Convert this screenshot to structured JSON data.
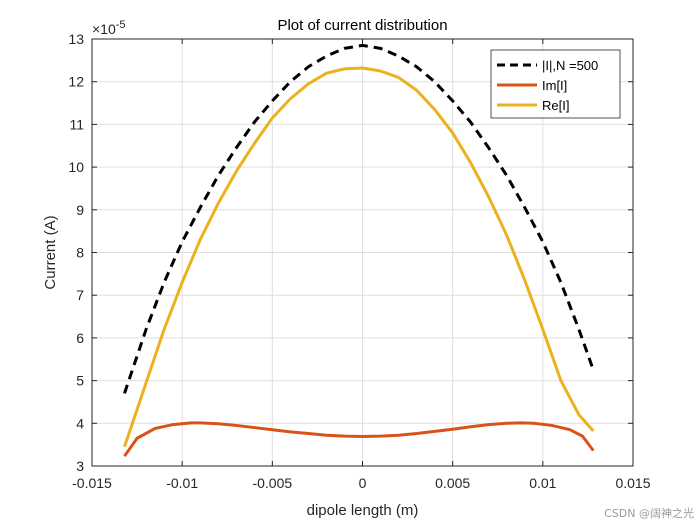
{
  "chart_data": {
    "type": "line",
    "title": "Plot of current distribution",
    "xlabel": "dipole length (m)",
    "ylabel": "Current (A)",
    "y_exponent_prefix": "×10",
    "y_exponent_power": "-5",
    "xlim": [
      -0.015,
      0.015
    ],
    "ylim": [
      3,
      13
    ],
    "x_ticks": [
      -0.015,
      -0.01,
      -0.005,
      0,
      0.005,
      0.01,
      0.015
    ],
    "x_tick_labels": [
      "-0.015",
      "-0.01",
      "-0.005",
      "0",
      "0.005",
      "0.01",
      "0.015"
    ],
    "y_ticks": [
      3,
      4,
      5,
      6,
      7,
      8,
      9,
      10,
      11,
      12,
      13
    ],
    "y_tick_labels": [
      "3",
      "4",
      "5",
      "6",
      "7",
      "8",
      "9",
      "10",
      "11",
      "12",
      "13"
    ],
    "grid": true,
    "legend_position": "top-right",
    "series": [
      {
        "name": "|I|,N =500",
        "color": "#000000",
        "style": "dashed",
        "x": [
          -0.0132,
          -0.012,
          -0.011,
          -0.01,
          -0.009,
          -0.008,
          -0.007,
          -0.006,
          -0.005,
          -0.004,
          -0.003,
          -0.002,
          -0.001,
          0,
          0.001,
          0.002,
          0.003,
          0.004,
          0.005,
          0.006,
          0.007,
          0.008,
          0.009,
          0.01,
          0.011,
          0.012,
          0.0128
        ],
        "y": [
          4.7,
          6.2,
          7.3,
          8.25,
          9.05,
          9.8,
          10.45,
          11.05,
          11.55,
          12.0,
          12.35,
          12.6,
          12.78,
          12.85,
          12.78,
          12.6,
          12.35,
          12.0,
          11.55,
          11.05,
          10.45,
          9.8,
          9.05,
          8.25,
          7.3,
          6.2,
          5.25
        ]
      },
      {
        "name": "Im[I]",
        "color": "#D95319",
        "style": "solid",
        "x": [
          -0.0132,
          -0.0125,
          -0.0115,
          -0.0105,
          -0.0095,
          -0.009,
          -0.008,
          -0.007,
          -0.006,
          -0.005,
          -0.004,
          -0.003,
          -0.002,
          -0.001,
          0,
          0.001,
          0.002,
          0.003,
          0.004,
          0.005,
          0.006,
          0.007,
          0.008,
          0.0088,
          0.0095,
          0.0105,
          0.0115,
          0.0122,
          0.0128
        ],
        "y": [
          3.23,
          3.65,
          3.88,
          3.97,
          4.01,
          4.01,
          3.99,
          3.95,
          3.9,
          3.85,
          3.8,
          3.76,
          3.72,
          3.7,
          3.69,
          3.7,
          3.72,
          3.76,
          3.81,
          3.86,
          3.92,
          3.97,
          4.0,
          4.01,
          4.0,
          3.95,
          3.85,
          3.7,
          3.36
        ]
      },
      {
        "name": "Re[I]",
        "color": "#EDB120",
        "style": "solid",
        "x": [
          -0.0132,
          -0.012,
          -0.011,
          -0.01,
          -0.009,
          -0.008,
          -0.007,
          -0.006,
          -0.005,
          -0.004,
          -0.003,
          -0.002,
          -0.001,
          0,
          0.001,
          0.002,
          0.003,
          0.004,
          0.005,
          0.006,
          0.007,
          0.008,
          0.009,
          0.01,
          0.011,
          0.012,
          0.0128
        ],
        "y": [
          3.45,
          4.95,
          6.2,
          7.3,
          8.3,
          9.15,
          9.9,
          10.55,
          11.15,
          11.6,
          11.95,
          12.2,
          12.3,
          12.32,
          12.25,
          12.1,
          11.8,
          11.35,
          10.8,
          10.1,
          9.3,
          8.4,
          7.35,
          6.2,
          5.0,
          4.2,
          3.82
        ]
      }
    ]
  },
  "watermark": "CSDN @阔神之光"
}
